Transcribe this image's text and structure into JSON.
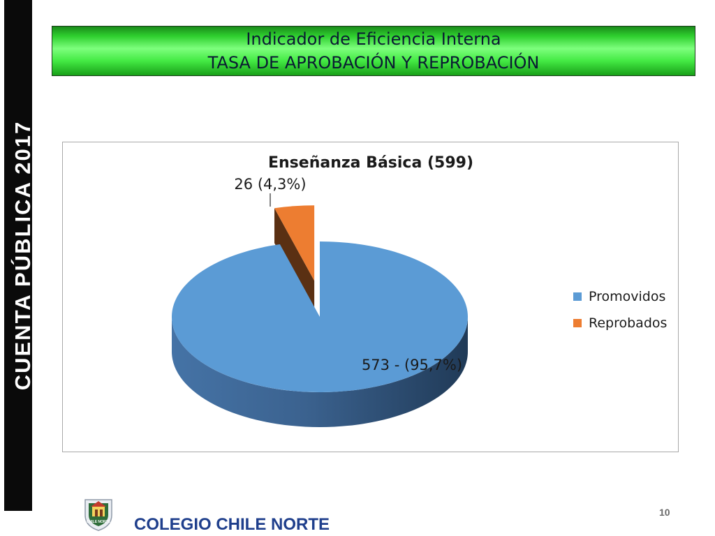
{
  "side_banner": "CUENTA  PÚBLICA  2017",
  "header": {
    "line1": "Indicador de Eficiencia Interna",
    "line2": "TASA DE APROBACIÓN Y REPROBACIÓN"
  },
  "chart_data": {
    "type": "pie",
    "style": "3d-exploded",
    "title": "Enseñanza Básica (599)",
    "total": 599,
    "slices": [
      {
        "name": "Promovidos",
        "value": 573,
        "percent": 95.7,
        "label": "573 -  (95,7%)",
        "color": "#5b9bd5"
      },
      {
        "name": "Reprobados",
        "value": 26,
        "percent": 4.3,
        "label": "26 (4,3%)",
        "color": "#ed7d31"
      }
    ],
    "legend": [
      "Promovidos",
      "Reprobados"
    ],
    "legend_position": "right"
  },
  "footer": {
    "school_name": "COLEGIO CHILE NORTE",
    "logo_text": "CHILE NORTE",
    "page_number": "10"
  },
  "colors": {
    "banner_green": "#3ee03e",
    "sidebar_black": "#0a0a0a",
    "footer_blue": "#1f3f8c"
  }
}
